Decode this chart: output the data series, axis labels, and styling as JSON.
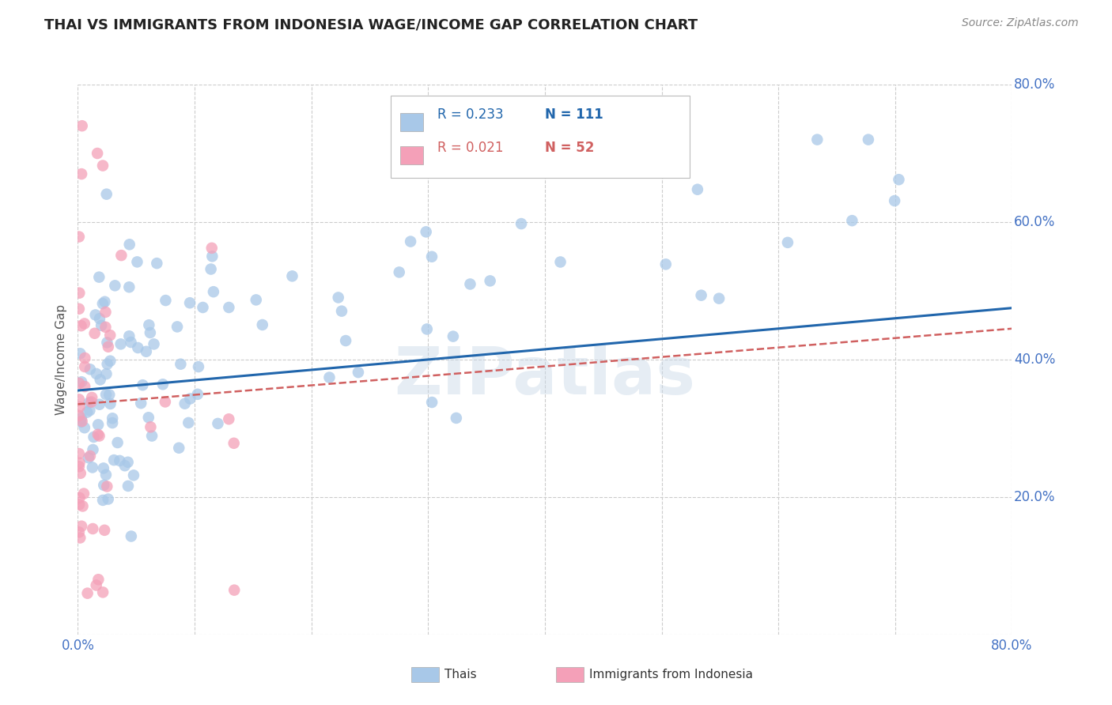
{
  "title": "THAI VS IMMIGRANTS FROM INDONESIA WAGE/INCOME GAP CORRELATION CHART",
  "source": "Source: ZipAtlas.com",
  "ylabel": "Wage/Income Gap",
  "xlim": [
    0.0,
    0.8
  ],
  "ylim": [
    0.0,
    0.8
  ],
  "watermark": "ZIPatlas",
  "legend_blue_r": "R = 0.233",
  "legend_blue_n": "N = 111",
  "legend_pink_r": "R = 0.021",
  "legend_pink_n": "N = 52",
  "blue_color": "#a8c8e8",
  "pink_color": "#f4a0b8",
  "trendline_blue_color": "#2166ac",
  "trendline_pink_color": "#d06060",
  "background_color": "#ffffff",
  "grid_color": "#cccccc",
  "axis_label_color": "#4472c4",
  "title_color": "#222222",
  "source_color": "#888888",
  "ylabel_color": "#555555",
  "trendline_blue_x0": 0.0,
  "trendline_blue_y0": 0.355,
  "trendline_blue_x1": 0.8,
  "trendline_blue_y1": 0.475,
  "trendline_pink_x0": 0.0,
  "trendline_pink_y0": 0.335,
  "trendline_pink_x1": 0.8,
  "trendline_pink_y1": 0.445
}
